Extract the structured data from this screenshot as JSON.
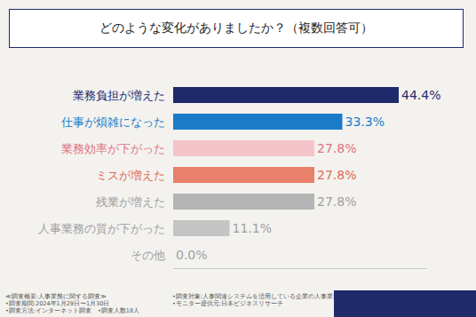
{
  "chart_data": {
    "type": "bar",
    "orientation": "horizontal",
    "title": "どのような変化がありましたか？（複数回答可）",
    "categories": [
      "業務負担が増えた",
      "仕事が煩雑になった",
      "業務効率が下がった",
      "ミスが増えた",
      "残業が増えた",
      "人事業務の質が下がった",
      "その他"
    ],
    "values": [
      44.4,
      33.3,
      27.8,
      27.8,
      27.8,
      11.1,
      0.0
    ],
    "value_labels": [
      "44.4%",
      "33.3%",
      "27.8%",
      "27.8%",
      "27.8%",
      "11.1%",
      "0.0%"
    ],
    "colors": [
      "#1f2a6b",
      "#1b7bc8",
      "#f5c4cb",
      "#e8806b",
      "#b5b5b5",
      "#c4c4c4",
      "#cccccc"
    ],
    "label_colors": [
      "#1f2a6b",
      "#1b7bc8",
      "#e0707f",
      "#e06a55",
      "#a0a0a0",
      "#a0a0a0",
      "#a0a0a0"
    ],
    "xlim": [
      0,
      50
    ],
    "xticks": [],
    "data_labels": true,
    "tick_labels": "y",
    "grid": false,
    "notes": [
      "≪調査概要:人事業務に関する調査≫",
      "•調査期間:2024年1月29日〜1月30日",
      "•調査方法:インターネット調査　•調査人数18人",
      "•調査対象:人事関連システムを活用している企業の人事業務担当者",
      "•モニター提供元:日本ビジネスリサーチ"
    ]
  }
}
